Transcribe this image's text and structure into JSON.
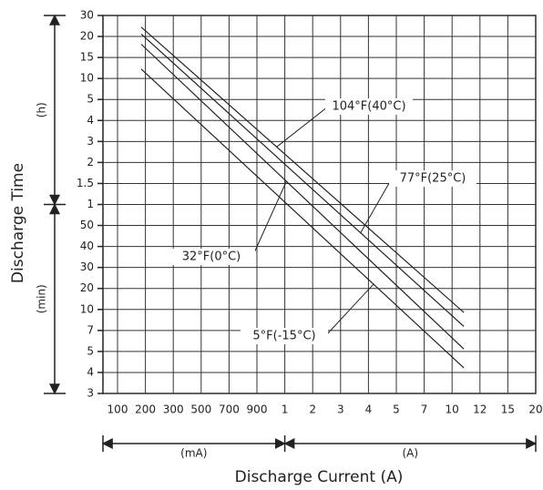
{
  "chart_data": {
    "type": "line",
    "y_label": "Discharge Time",
    "x_label": "Discharge Current (A)",
    "y_units": [
      "(h)",
      "(min)"
    ],
    "x_units": [
      "(mA)",
      "(A)"
    ],
    "x": [
      0.18,
      10.8
    ],
    "series": [
      {
        "name": "104°F(40°C)",
        "color": "#222222",
        "values": [
          1440,
          9.5
        ]
      },
      {
        "name": "77°F(25°C)",
        "color": "#222222",
        "values": [
          1260,
          7.5
        ]
      },
      {
        "name": "32°F(0°C)",
        "color": "#222222",
        "values": [
          1080,
          5.2
        ]
      },
      {
        "name": "5°F(-15°C)",
        "color": "#222222",
        "values": [
          720,
          4.2
        ]
      }
    ],
    "xlim": [
      0.1,
      20
    ],
    "xticks": [
      {
        "value": 0.1,
        "label": "100"
      },
      {
        "value": 0.2,
        "label": "200"
      },
      {
        "value": 0.3,
        "label": "300"
      },
      {
        "value": 0.5,
        "label": "500"
      },
      {
        "value": 0.7,
        "label": "700"
      },
      {
        "value": 0.9,
        "label": "900"
      },
      1,
      2,
      3,
      4,
      5,
      7,
      10,
      12,
      15,
      20
    ],
    "ylim": [
      3,
      1800
    ],
    "yticks": [
      {
        "value": 1800,
        "label": "30"
      },
      {
        "value": 1200,
        "label": "20"
      },
      {
        "value": 900,
        "label": "15"
      },
      {
        "value": 600,
        "label": "10"
      },
      {
        "value": 300,
        "label": "5"
      },
      {
        "value": 240,
        "label": "4"
      },
      {
        "value": 180,
        "label": "3"
      },
      {
        "value": 120,
        "label": "2"
      },
      {
        "value": 90,
        "label": "1.5"
      },
      {
        "value": 60,
        "label": "1"
      },
      50,
      40,
      30,
      20,
      10,
      7,
      5,
      4,
      3
    ],
    "grid": true
  }
}
